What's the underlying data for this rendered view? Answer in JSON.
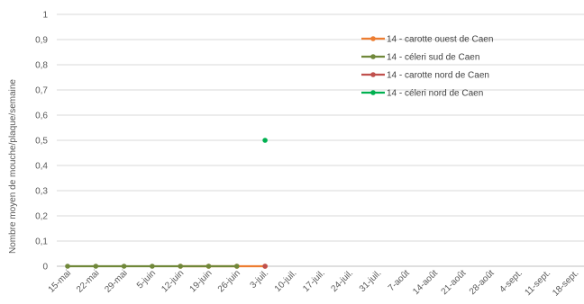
{
  "chart_data": {
    "type": "line",
    "title": "",
    "xlabel": "",
    "ylabel": "Nombre moyen de mouche/plaque/semaine",
    "ylim": [
      0,
      1
    ],
    "y_ticks": [
      "0",
      "0,1",
      "0,2",
      "0,3",
      "0,4",
      "0,5",
      "0,6",
      "0,7",
      "0,8",
      "0,9",
      "1"
    ],
    "grid": true,
    "legend": "top-right",
    "categories": [
      "15-mai",
      "22-mai",
      "29-mai",
      "5-juin",
      "12-juin",
      "19-juin",
      "26-juin",
      "3-juil.",
      "10-juil.",
      "17-juil.",
      "24-juil.",
      "31-juil.",
      "7-août",
      "14-août",
      "21-août",
      "28-août",
      "4-sept.",
      "11-sept.",
      "18-sept."
    ],
    "series": [
      {
        "name": "14 - carotte ouest de Caen",
        "color": "#ED7D31",
        "values": [
          null,
          null,
          null,
          null,
          0,
          0,
          0,
          0,
          null,
          null,
          null,
          null,
          null,
          null,
          null,
          null,
          null,
          null,
          null
        ]
      },
      {
        "name": "14 - céleri sud de Caen",
        "color": "#70883A",
        "values": [
          0,
          0,
          0,
          0,
          0,
          0,
          0,
          null,
          null,
          null,
          null,
          null,
          null,
          null,
          null,
          null,
          null,
          null,
          null
        ]
      },
      {
        "name": "14 - carotte  nord de Caen",
        "color": "#C0504D",
        "values": [
          null,
          null,
          null,
          null,
          null,
          null,
          null,
          0,
          null,
          null,
          null,
          null,
          null,
          null,
          null,
          null,
          null,
          null,
          null
        ]
      },
      {
        "name": "14 - céleri nord de Caen",
        "color": "#00B050",
        "values": [
          null,
          null,
          null,
          null,
          null,
          null,
          null,
          0.5,
          null,
          null,
          null,
          null,
          null,
          null,
          null,
          null,
          null,
          null,
          null
        ]
      }
    ]
  }
}
